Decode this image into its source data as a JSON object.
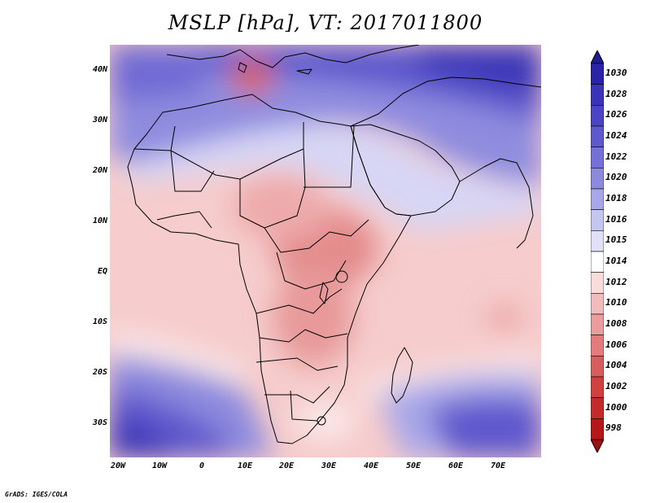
{
  "title": "MSLP [hPa], VT: 2017011800",
  "credit": "GrADS: IGES/COLA",
  "map": {
    "region": "Africa",
    "lon_range": [
      -24,
      80
    ],
    "lat_range": [
      -37,
      45
    ],
    "lat_labels": [
      "40N",
      "30N",
      "20N",
      "10N",
      "EQ",
      "10S",
      "20S",
      "30S"
    ],
    "lon_labels": [
      "20W",
      "10W",
      "0",
      "10E",
      "20E",
      "30E",
      "40E",
      "50E",
      "60E",
      "70E"
    ]
  },
  "colorbar": {
    "labels": [
      "1030",
      "1028",
      "1026",
      "1024",
      "1022",
      "1020",
      "1018",
      "1016",
      "1015",
      "1014",
      "1012",
      "1010",
      "1008",
      "1006",
      "1004",
      "1002",
      "1000",
      "998"
    ],
    "colors": [
      "#2a22a8",
      "#3a34b8",
      "#4b45c4",
      "#5e59cd",
      "#7570d6",
      "#8d8ade",
      "#a9a7e8",
      "#c6c5f1",
      "#e0e0f8",
      "#ffffff",
      "#fadcdc",
      "#f3bcbc",
      "#eb9c9c",
      "#e27c7c",
      "#d85d5d",
      "#cf4242",
      "#c42c2c",
      "#b51818"
    ],
    "top_arrow_color": "#1e1a98",
    "bottom_arrow_color": "#a21010"
  }
}
